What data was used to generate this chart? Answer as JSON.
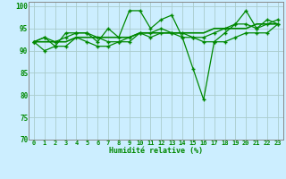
{
  "xlabel": "Humidité relative (%)",
  "background_color": "#cceeff",
  "grid_color": "#aacccc",
  "line_color": "#008800",
  "markersize": 3.5,
  "linewidth": 0.9,
  "xlim": [
    -0.5,
    23.5
  ],
  "ylim": [
    70,
    101
  ],
  "yticks": [
    70,
    75,
    80,
    85,
    90,
    95,
    100
  ],
  "xticks": [
    0,
    1,
    2,
    3,
    4,
    5,
    6,
    7,
    8,
    9,
    10,
    11,
    12,
    13,
    14,
    15,
    16,
    17,
    18,
    19,
    20,
    21,
    22,
    23
  ],
  "series": [
    [
      92,
      93,
      91,
      94,
      94,
      94,
      92,
      95,
      93,
      99,
      99,
      95,
      97,
      98,
      93,
      86,
      79,
      92,
      94,
      96,
      99,
      95,
      97,
      96
    ],
    [
      92,
      90,
      91,
      91,
      93,
      92,
      91,
      91,
      92,
      92,
      94,
      93,
      94,
      94,
      93,
      93,
      92,
      92,
      92,
      93,
      94,
      94,
      94,
      96
    ],
    [
      92,
      93,
      92,
      93,
      94,
      94,
      93,
      92,
      92,
      93,
      94,
      94,
      95,
      94,
      94,
      93,
      93,
      94,
      95,
      96,
      96,
      95,
      96,
      97
    ],
    [
      92,
      92,
      92,
      92,
      93,
      93,
      93,
      93,
      93,
      93,
      94,
      94,
      94,
      94,
      94,
      94,
      94,
      95,
      95,
      95,
      95,
      96,
      96,
      96
    ]
  ]
}
